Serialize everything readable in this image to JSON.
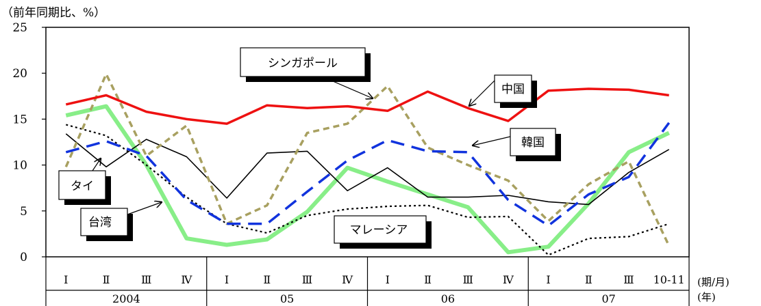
{
  "chart_data": {
    "type": "line",
    "ylabel": "（前年同期比、%）",
    "xlabel_period": "(期/月)",
    "xlabel_year": "(年)",
    "ylim": [
      0,
      25
    ],
    "yticks": [
      0,
      5,
      10,
      15,
      20,
      25
    ],
    "grid": false,
    "categories": [
      "Ⅰ",
      "Ⅱ",
      "Ⅲ",
      "Ⅳ",
      "Ⅰ",
      "Ⅱ",
      "Ⅲ",
      "Ⅳ",
      "Ⅰ",
      "Ⅱ",
      "Ⅲ",
      "Ⅳ",
      "Ⅰ",
      "Ⅱ",
      "Ⅲ",
      "10-11"
    ],
    "years": [
      {
        "label": "2004",
        "start": 0,
        "end": 4
      },
      {
        "label": "05",
        "start": 4,
        "end": 8
      },
      {
        "label": "06",
        "start": 8,
        "end": 12
      },
      {
        "label": "07",
        "start": 12,
        "end": 16
      }
    ],
    "series": [
      {
        "name": "中国",
        "color": "#ee1111",
        "values": [
          16.6,
          17.6,
          15.8,
          15.0,
          14.5,
          16.5,
          16.2,
          16.4,
          15.9,
          18.0,
          16.2,
          14.8,
          18.1,
          18.3,
          18.2,
          17.6
        ]
      },
      {
        "name": "シンガポール",
        "color": "#a8a060",
        "values": [
          9.8,
          19.9,
          11.0,
          14.3,
          3.6,
          5.6,
          13.5,
          14.5,
          18.6,
          11.9,
          10.0,
          8.3,
          3.9,
          7.9,
          10.4,
          1.2
        ]
      },
      {
        "name": "韓国",
        "color": "#1133dd",
        "values": [
          11.4,
          12.6,
          11.0,
          6.2,
          3.6,
          3.6,
          7.1,
          10.5,
          12.7,
          11.5,
          11.4,
          6.2,
          3.4,
          6.8,
          8.7,
          14.6
        ]
      },
      {
        "name": "タイ",
        "color": "#000000",
        "values": [
          13.4,
          9.8,
          12.8,
          10.9,
          6.4,
          11.3,
          11.5,
          7.2,
          9.7,
          6.5,
          6.5,
          6.7,
          6.0,
          5.7,
          9.2,
          11.7
        ]
      },
      {
        "name": "台湾",
        "color": "#88ee88",
        "values": [
          15.4,
          16.4,
          10.0,
          2.0,
          1.3,
          1.9,
          4.9,
          9.7,
          8.2,
          6.8,
          5.4,
          0.5,
          1.1,
          5.8,
          11.4,
          13.5
        ]
      },
      {
        "name": "マレーシア",
        "color": "#000000",
        "values": [
          14.4,
          13.2,
          10.0,
          6.5,
          3.6,
          2.6,
          4.5,
          5.2,
          5.5,
          5.6,
          4.3,
          4.4,
          0.2,
          2.0,
          2.2,
          3.6
        ]
      }
    ],
    "callouts": {
      "china": "中国",
      "singapore": "シンガポール",
      "korea": "韓国",
      "thai": "タイ",
      "taiwan": "台湾",
      "malaysia": "マレーシア"
    }
  }
}
